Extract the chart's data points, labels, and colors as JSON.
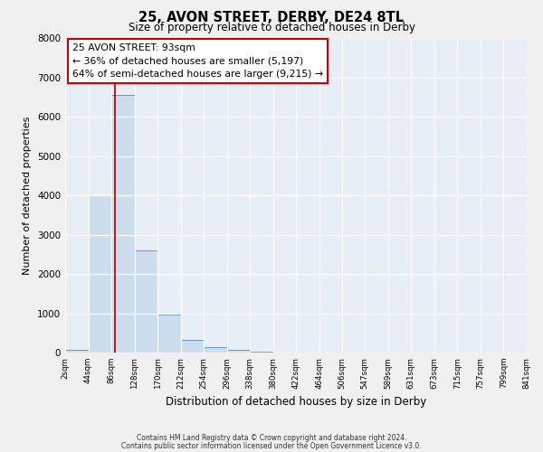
{
  "title": "25, AVON STREET, DERBY, DE24 8TL",
  "subtitle": "Size of property relative to detached houses in Derby",
  "xlabel": "Distribution of detached houses by size in Derby",
  "ylabel": "Number of detached properties",
  "bar_color": "#ccdded",
  "bar_edge_color": "#6699bb",
  "background_color": "#e8eef5",
  "grid_color": "#ffffff",
  "annotation_box_color": "#cc0000",
  "red_line_color": "#cc0000",
  "fig_background": "#f0f0f0",
  "property_size": 93,
  "annotation_title": "25 AVON STREET: 93sqm",
  "annotation_line1": "← 36% of detached houses are smaller (5,197)",
  "annotation_line2": "64% of semi-detached houses are larger (9,215) →",
  "bin_edges": [
    2,
    44,
    86,
    128,
    170,
    212,
    254,
    296,
    338,
    380,
    422,
    464,
    506,
    547,
    589,
    631,
    673,
    715,
    757,
    799,
    841
  ],
  "bin_counts": [
    60,
    4000,
    6550,
    2600,
    960,
    330,
    130,
    80,
    30,
    0,
    0,
    0,
    0,
    0,
    0,
    0,
    0,
    0,
    0,
    0
  ],
  "ylim": [
    0,
    8000
  ],
  "yticks": [
    0,
    1000,
    2000,
    3000,
    4000,
    5000,
    6000,
    7000,
    8000
  ],
  "tick_labels": [
    "2sqm",
    "44sqm",
    "86sqm",
    "128sqm",
    "170sqm",
    "212sqm",
    "254sqm",
    "296sqm",
    "338sqm",
    "380sqm",
    "422sqm",
    "464sqm",
    "506sqm",
    "547sqm",
    "589sqm",
    "631sqm",
    "673sqm",
    "715sqm",
    "757sqm",
    "799sqm",
    "841sqm"
  ],
  "footer_line1": "Contains HM Land Registry data © Crown copyright and database right 2024.",
  "footer_line2": "Contains public sector information licensed under the Open Government Licence v3.0."
}
